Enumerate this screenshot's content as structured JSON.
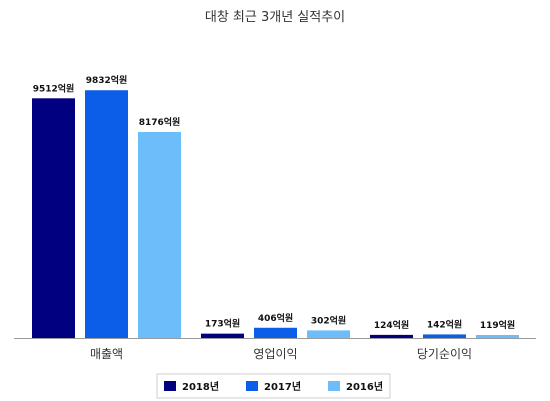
{
  "chart_data": {
    "type": "bar",
    "title": "대창 최근 3개년 실적추이",
    "categories": [
      "매출액",
      "영업이익",
      "당기순이익"
    ],
    "unit": "억원",
    "ylim": [
      0,
      10000
    ],
    "grid": false,
    "legend_position": "bottom",
    "series": [
      {
        "name": "2018년",
        "color": "#010080",
        "values": [
          9512,
          173,
          124
        ]
      },
      {
        "name": "2017년",
        "color": "#0c5de8",
        "values": [
          9832,
          406,
          142
        ]
      },
      {
        "name": "2016년",
        "color": "#6cbdf9",
        "values": [
          8176,
          302,
          119
        ]
      }
    ],
    "data_labels": [
      [
        "9512억원",
        "173억원",
        "124억원"
      ],
      [
        "9832억원",
        "406억원",
        "142억원"
      ],
      [
        "8176억원",
        "302억원",
        "119억원"
      ]
    ]
  }
}
